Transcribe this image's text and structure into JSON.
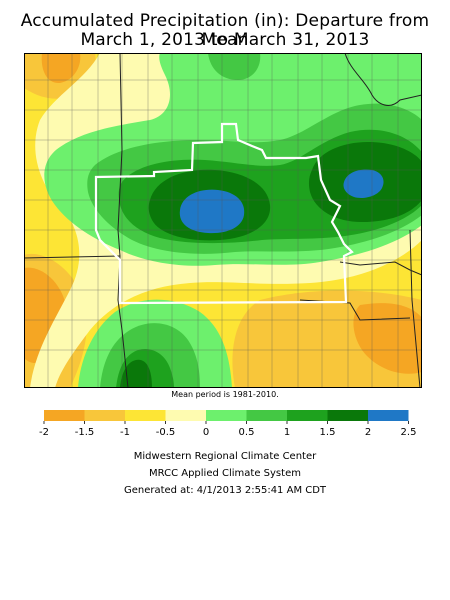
{
  "title_line1": "Accumulated Precipitation (in): Departure from Mean",
  "title_line2": "March 1, 2013 to March 31, 2013",
  "mean_note": "Mean period is 1981-2010.",
  "legend": {
    "ticks": [
      "-2",
      "-1.5",
      "-1",
      "-0.5",
      "0",
      "0.5",
      "1",
      "1.5",
      "2",
      "2.5"
    ],
    "colors": [
      "#f5a623",
      "#f8c63a",
      "#fde535",
      "#fefbb0",
      "#6df06d",
      "#44c844",
      "#1ea21e",
      "#0a780a",
      "#1f78c6"
    ]
  },
  "palette": {
    "very_dry": "#f5a623",
    "dry": "#f8c63a",
    "slightly_dry": "#fde535",
    "near_normal_dry": "#fefbb0",
    "near_normal_wet": "#6df06d",
    "wet": "#44c844",
    "very_wet": "#1ea21e",
    "much_wet": "#0a780a",
    "extreme_wet": "#1f78c6"
  },
  "credits": {
    "line1": "Midwestern Regional Climate Center",
    "line2": "MRCC Applied Climate System",
    "line3": "Generated at: 4/1/2013 2:55:41 AM CDT"
  }
}
